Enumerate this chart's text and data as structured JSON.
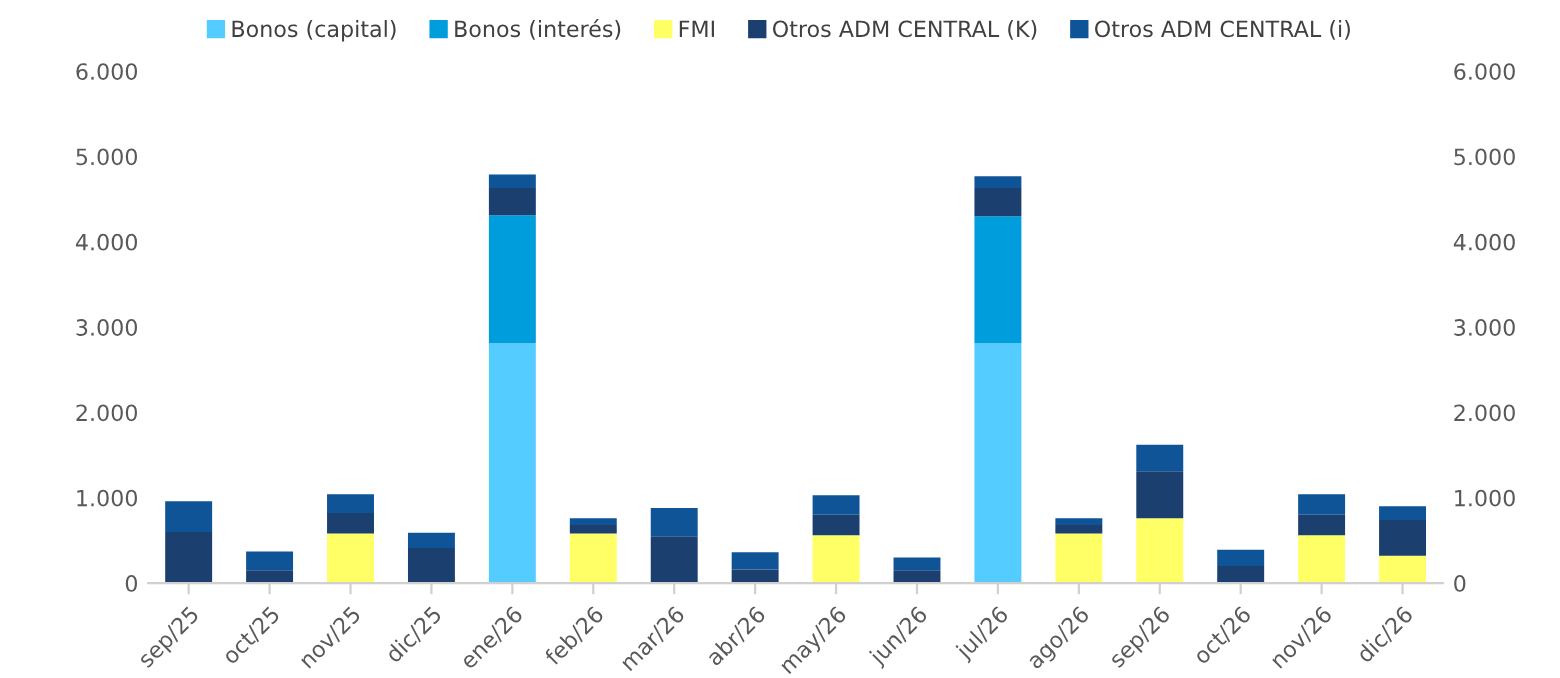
{
  "chart_data": {
    "type": "bar",
    "stacked": true,
    "legend": "top",
    "grid": false,
    "categories": [
      "sep/25",
      "oct/25",
      "nov/25",
      "dic/25",
      "ene/26",
      "feb/26",
      "mar/26",
      "abr/26",
      "may/26",
      "jun/26",
      "jul/26",
      "ago/26",
      "sep/26",
      "oct/26",
      "nov/26",
      "dic/26"
    ],
    "series": [
      {
        "name": "Bonos (capital)",
        "color": "#55ccff",
        "values": [
          0,
          0,
          0,
          0,
          2810,
          0,
          0,
          0,
          0,
          0,
          2810,
          0,
          0,
          0,
          0,
          0
        ]
      },
      {
        "name": "Bonos (interés)",
        "color": "#009ddc",
        "values": [
          0,
          0,
          0,
          0,
          1500,
          0,
          0,
          0,
          0,
          0,
          1490,
          0,
          0,
          0,
          0,
          0
        ]
      },
      {
        "name": "FMI",
        "color": "#ffff66",
        "values": [
          0,
          0,
          580,
          0,
          0,
          580,
          0,
          0,
          560,
          0,
          0,
          580,
          760,
          0,
          560,
          320
        ]
      },
      {
        "name": "Otros ADM CENTRAL (K)",
        "color": "#1b3f6e",
        "values": [
          600,
          150,
          240,
          410,
          320,
          100,
          550,
          160,
          240,
          150,
          330,
          100,
          550,
          200,
          240,
          420
        ]
      },
      {
        "name": "Otros ADM CENTRAL (i)",
        "color": "#0f5496",
        "values": [
          360,
          220,
          220,
          180,
          160,
          80,
          330,
          200,
          230,
          150,
          140,
          80,
          310,
          190,
          240,
          160
        ]
      }
    ],
    "ylim": [
      0,
      6000
    ],
    "yticks": [
      0,
      {
        "value": 1000,
        "label": "1.000"
      },
      {
        "value": 2000,
        "label": "2.000"
      },
      {
        "value": 3000,
        "label": "3.000"
      },
      {
        "value": 4000,
        "label": "4.000"
      },
      {
        "value": 5000,
        "label": "5.000"
      },
      {
        "value": 6000,
        "label": "6.000"
      }
    ],
    "y2lim": [
      0,
      6000
    ],
    "y2ticks": [
      0,
      {
        "value": 1000,
        "label": "1.000"
      },
      {
        "value": 2000,
        "label": "2.000"
      },
      {
        "value": 3000,
        "label": "3.000"
      },
      {
        "value": 4000,
        "label": "4.000"
      },
      {
        "value": 5000,
        "label": "5.000"
      },
      {
        "value": 6000,
        "label": "6.000"
      }
    ]
  }
}
